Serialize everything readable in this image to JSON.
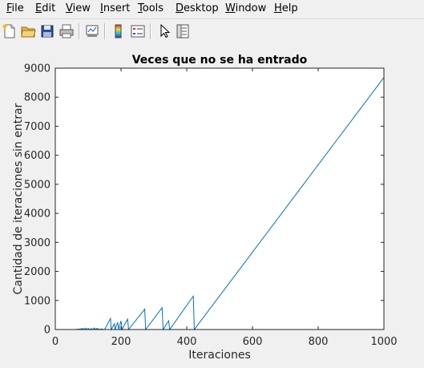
{
  "menubar": {
    "items": [
      {
        "label": "File",
        "u": "F",
        "rest": "ile"
      },
      {
        "label": "Edit",
        "u": "E",
        "rest": "dit"
      },
      {
        "label": "View",
        "u": "V",
        "rest": "iew"
      },
      {
        "label": "Insert",
        "u": "I",
        "rest": "nsert"
      },
      {
        "label": "Tools",
        "u": "T",
        "rest": "ools"
      },
      {
        "label": "Desktop",
        "u": "D",
        "rest": "esktop"
      },
      {
        "label": "Window",
        "u": "W",
        "rest": "indow"
      },
      {
        "label": "Help",
        "u": "H",
        "rest": "elp"
      }
    ]
  },
  "toolbar": {
    "icons": [
      "new-figure-icon",
      "open-file-icon",
      "save-icon",
      "print-icon",
      "link-plot-icon",
      "colorbar-icon",
      "legend-icon",
      "edit-plot-arrow-icon",
      "property-inspector-icon"
    ]
  },
  "chart_data": {
    "type": "line",
    "title": "Veces que no se ha entrado",
    "xlabel": "Iteraciones",
    "ylabel": "Cantidad de iteraciones sin entrar",
    "xlim": [
      0,
      1000
    ],
    "ylim": [
      0,
      9000
    ],
    "xticks": [
      0,
      200,
      400,
      600,
      800,
      1000
    ],
    "yticks": [
      0,
      1000,
      2000,
      3000,
      4000,
      5000,
      6000,
      7000,
      8000,
      9000
    ],
    "grid": false,
    "series_color": "#0072bd",
    "series": [
      {
        "x": [
          0,
          60,
          85,
          87,
          92,
          95,
          100,
          105,
          110,
          115,
          118,
          120,
          125,
          128,
          130,
          135,
          140,
          148,
          150,
          168,
          170,
          180,
          182,
          190,
          193,
          200,
          203,
          220,
          223,
          272,
          275,
          325,
          328,
          345,
          348,
          420,
          423,
          1000
        ],
        "y": [
          0,
          0,
          30,
          0,
          50,
          0,
          40,
          0,
          30,
          0,
          50,
          0,
          40,
          0,
          30,
          0,
          20,
          0,
          0,
          380,
          0,
          200,
          0,
          250,
          0,
          300,
          0,
          360,
          0,
          700,
          0,
          750,
          0,
          300,
          0,
          1150,
          0,
          8680
        ]
      }
    ]
  }
}
